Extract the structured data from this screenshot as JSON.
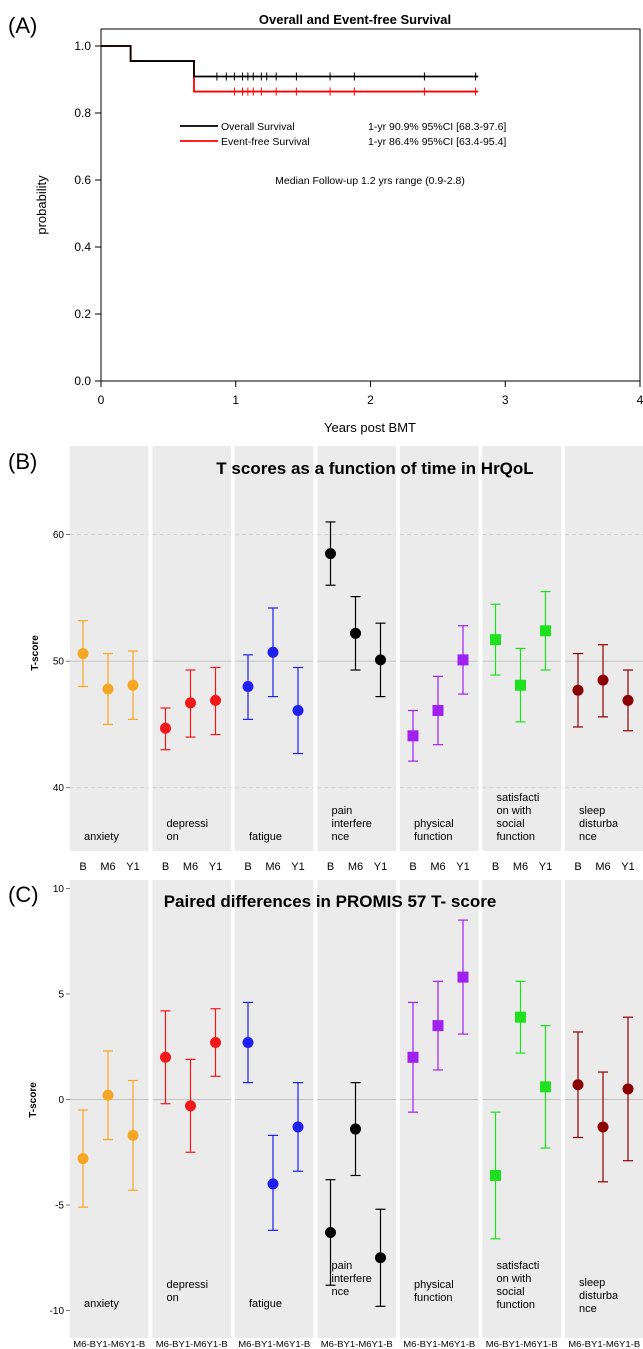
{
  "panels": {
    "a": {
      "letter": "(A)"
    },
    "b": {
      "letter": "(B)"
    },
    "c": {
      "letter": "(C)"
    }
  },
  "colors": {
    "anxiety": "#f5a623",
    "depression": "#f01818",
    "fatigue": "#1f1fee",
    "pain": "#000000",
    "physical": "#a020f0",
    "satisfaction": "#1ee01e",
    "sleep": "#8b0000",
    "panel_bg": "#ebebeb",
    "os_line": "#000000",
    "efs_line": "#ff0000"
  },
  "chart_data": [
    {
      "type": "line",
      "title": "Overall and Event-free Survival",
      "xlabel": "Years post BMT",
      "ylabel": "probability",
      "xlim": [
        0,
        4
      ],
      "ylim": [
        0,
        1
      ],
      "xticks": [
        "0",
        "1",
        "2",
        "3",
        "4"
      ],
      "yticks": [
        "0.0",
        "0.2",
        "0.4",
        "0.6",
        "0.8",
        "1.0"
      ],
      "series": [
        {
          "name": "Overall Survival",
          "stat": "1-yr 90.9% 95%CI [68.3-97.6]",
          "step": [
            [
              0,
              1.0
            ],
            [
              0.22,
              0.955
            ],
            [
              0.69,
              0.909
            ],
            [
              2.8,
              0.909
            ]
          ],
          "censor": [
            0.86,
            0.93,
            0.99,
            1.05,
            1.09,
            1.13,
            1.19,
            1.23,
            1.3,
            1.45,
            1.7,
            1.88,
            2.4,
            2.78
          ]
        },
        {
          "name": "Event-free Survival",
          "stat": "1-yr 86.4% 95%CI [63.4-95.4]",
          "step": [
            [
              0,
              1.0
            ],
            [
              0.22,
              0.955
            ],
            [
              0.69,
              0.864
            ],
            [
              2.8,
              0.864
            ]
          ],
          "censor": [
            0.99,
            1.05,
            1.09,
            1.13,
            1.19,
            1.3,
            1.45,
            1.7,
            1.88,
            2.4,
            2.78
          ]
        }
      ],
      "annotation": "Median Follow-up 1.2 yrs range (0.9-2.8)"
    },
    {
      "type": "scatter",
      "title": "T scores as a function of time in HrQoL",
      "ylabel": "T-score",
      "ylim": [
        35,
        67
      ],
      "yticks": [
        40,
        50,
        60
      ],
      "x_categories": [
        "B",
        "M6",
        "Y1"
      ],
      "facets": [
        {
          "label": [
            "anxiety"
          ],
          "color_key": "anxiety",
          "marker": "circle",
          "values": [
            50.6,
            47.8,
            48.1
          ],
          "low": [
            48.0,
            45.0,
            45.4
          ],
          "high": [
            53.2,
            50.6,
            50.8
          ]
        },
        {
          "label": [
            "depressi",
            "on"
          ],
          "color_key": "depression",
          "marker": "circle",
          "values": [
            44.7,
            46.7,
            46.9
          ],
          "low": [
            43.0,
            44.0,
            44.2
          ],
          "high": [
            46.3,
            49.3,
            49.5
          ]
        },
        {
          "label": [
            "fatigue"
          ],
          "color_key": "fatigue",
          "marker": "circle",
          "values": [
            48.0,
            50.7,
            46.1
          ],
          "low": [
            45.4,
            47.2,
            42.7
          ],
          "high": [
            50.5,
            54.2,
            49.5
          ]
        },
        {
          "label": [
            "pain",
            "interfere",
            "nce"
          ],
          "color_key": "pain",
          "marker": "circle",
          "values": [
            58.5,
            52.2,
            50.1
          ],
          "low": [
            56.0,
            49.3,
            47.2
          ],
          "high": [
            61.0,
            55.1,
            53.0
          ]
        },
        {
          "label": [
            "physical",
            "function"
          ],
          "color_key": "physical",
          "marker": "square",
          "values": [
            44.1,
            46.1,
            50.1
          ],
          "low": [
            42.1,
            43.4,
            47.4
          ],
          "high": [
            46.1,
            48.8,
            52.8
          ]
        },
        {
          "label": [
            "satisfacti",
            "on with",
            "social",
            "function"
          ],
          "color_key": "satisfaction",
          "marker": "square",
          "values": [
            51.7,
            48.1,
            52.4
          ],
          "low": [
            48.9,
            45.2,
            49.3
          ],
          "high": [
            54.5,
            51.0,
            55.5
          ]
        },
        {
          "label": [
            "sleep",
            "disturba",
            "nce"
          ],
          "color_key": "sleep",
          "marker": "circle",
          "values": [
            47.7,
            48.5,
            46.9
          ],
          "low": [
            44.8,
            45.6,
            44.5
          ],
          "high": [
            50.6,
            51.3,
            49.3
          ]
        }
      ]
    },
    {
      "type": "scatter",
      "title": "Paired differences in PROMIS 57 T- score",
      "ylabel": "T-score",
      "ylim": [
        -11.3,
        10.4
      ],
      "yticks": [
        -10,
        -5,
        0,
        5,
        10
      ],
      "x_categories": [
        "M6-B",
        "Y1-M6",
        "Y1-B"
      ],
      "x_tick_label": "M6-BY1-M6Y1-B",
      "facets": [
        {
          "label": [
            "anxiety"
          ],
          "color_key": "anxiety",
          "marker": "circle",
          "values": [
            -2.8,
            0.2,
            -1.7
          ],
          "low": [
            -5.1,
            -1.9,
            -4.3
          ],
          "high": [
            -0.5,
            2.3,
            0.9
          ]
        },
        {
          "label": [
            "depressi",
            "on"
          ],
          "color_key": "depression",
          "marker": "circle",
          "values": [
            2.0,
            -0.3,
            2.7
          ],
          "low": [
            -0.2,
            -2.5,
            1.1
          ],
          "high": [
            4.2,
            1.9,
            4.3
          ]
        },
        {
          "label": [
            "fatigue"
          ],
          "color_key": "fatigue",
          "marker": "circle",
          "values": [
            2.7,
            -4.0,
            -1.3
          ],
          "low": [
            0.8,
            -6.2,
            -3.4
          ],
          "high": [
            4.6,
            -1.7,
            0.8
          ]
        },
        {
          "label": [
            "pain",
            "interfere",
            "nce"
          ],
          "color_key": "pain",
          "marker": "circle",
          "values": [
            -6.3,
            -1.4,
            -7.5
          ],
          "low": [
            -8.8,
            -3.6,
            -9.8
          ],
          "high": [
            -3.8,
            0.8,
            -5.2
          ]
        },
        {
          "label": [
            "physical",
            "function"
          ],
          "color_key": "physical",
          "marker": "square",
          "values": [
            2.0,
            3.5,
            5.8
          ],
          "low": [
            -0.6,
            1.4,
            3.1
          ],
          "high": [
            4.6,
            5.6,
            8.5
          ]
        },
        {
          "label": [
            "satisfacti",
            "on with",
            "social",
            "function"
          ],
          "color_key": "satisfaction",
          "marker": "square",
          "values": [
            -3.6,
            3.9,
            0.6
          ],
          "low": [
            -6.6,
            2.2,
            -2.3
          ],
          "high": [
            -0.6,
            5.6,
            3.5
          ]
        },
        {
          "label": [
            "sleep",
            "disturba",
            "nce"
          ],
          "color_key": "sleep",
          "marker": "circle",
          "values": [
            0.7,
            -1.3,
            0.5
          ],
          "low": [
            -1.8,
            -3.9,
            -2.9
          ],
          "high": [
            3.2,
            1.3,
            3.9
          ]
        }
      ]
    }
  ]
}
